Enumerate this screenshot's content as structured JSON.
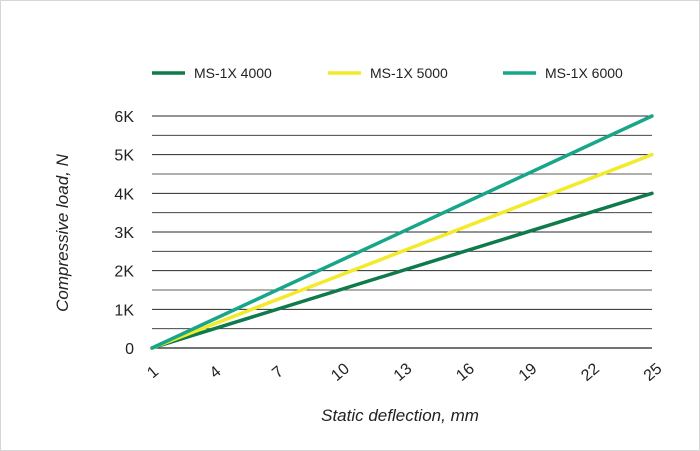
{
  "chart_data": {
    "type": "line",
    "xlabel": "Static deflection, mm",
    "ylabel": "Compressive load, N",
    "x_ticks": [
      "1",
      "4",
      "7",
      "10",
      "13",
      "16",
      "19",
      "22",
      "25"
    ],
    "y_ticks": [
      "0",
      "1K",
      "2K",
      "3K",
      "4K",
      "5K",
      "6K"
    ],
    "xlim": [
      1,
      25
    ],
    "ylim": [
      0,
      6000
    ],
    "grid": "horizontal",
    "legend_position": "top",
    "series": [
      {
        "name": "MS-1X 4000",
        "color": "#0f7a4a",
        "x": [
          1,
          25
        ],
        "y": [
          0,
          4000
        ]
      },
      {
        "name": "MS-1X 5000",
        "color": "#f3ea2a",
        "x": [
          1,
          25
        ],
        "y": [
          0,
          5000
        ]
      },
      {
        "name": "MS-1X 6000",
        "color": "#17a689",
        "x": [
          1,
          25
        ],
        "y": [
          0,
          6000
        ]
      }
    ]
  }
}
